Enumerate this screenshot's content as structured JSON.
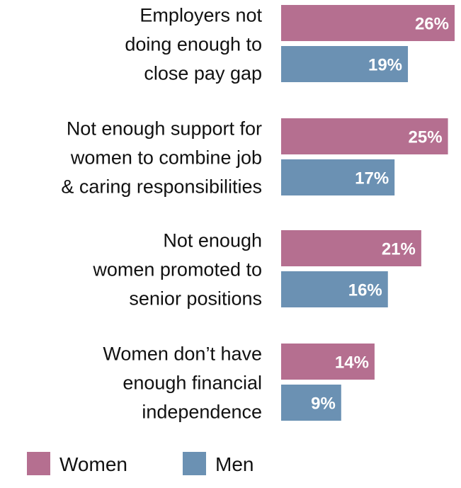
{
  "chart_data": {
    "type": "bar",
    "orientation": "horizontal",
    "categories": [
      [
        "Employers not",
        "doing enough to",
        "close pay gap"
      ],
      [
        "Not enough support for",
        "women to combine job",
        "& caring responsibilities"
      ],
      [
        "Not enough",
        "women promoted to",
        "senior positions"
      ],
      [
        "Women don’t have",
        "enough financial",
        "independence"
      ]
    ],
    "series": [
      {
        "name": "Women",
        "color": "#b56f90",
        "values": [
          26,
          25,
          21,
          14
        ],
        "labels": [
          "26%",
          "25%",
          "21%",
          "14%"
        ]
      },
      {
        "name": "Men",
        "color": "#6b91b3",
        "values": [
          19,
          17,
          16,
          9
        ],
        "labels": [
          "19%",
          "17%",
          "16%",
          "9%"
        ]
      }
    ],
    "value_unit": "%",
    "xlim": [
      0,
      26
    ],
    "grid": false,
    "legend_position": "bottom-left"
  }
}
